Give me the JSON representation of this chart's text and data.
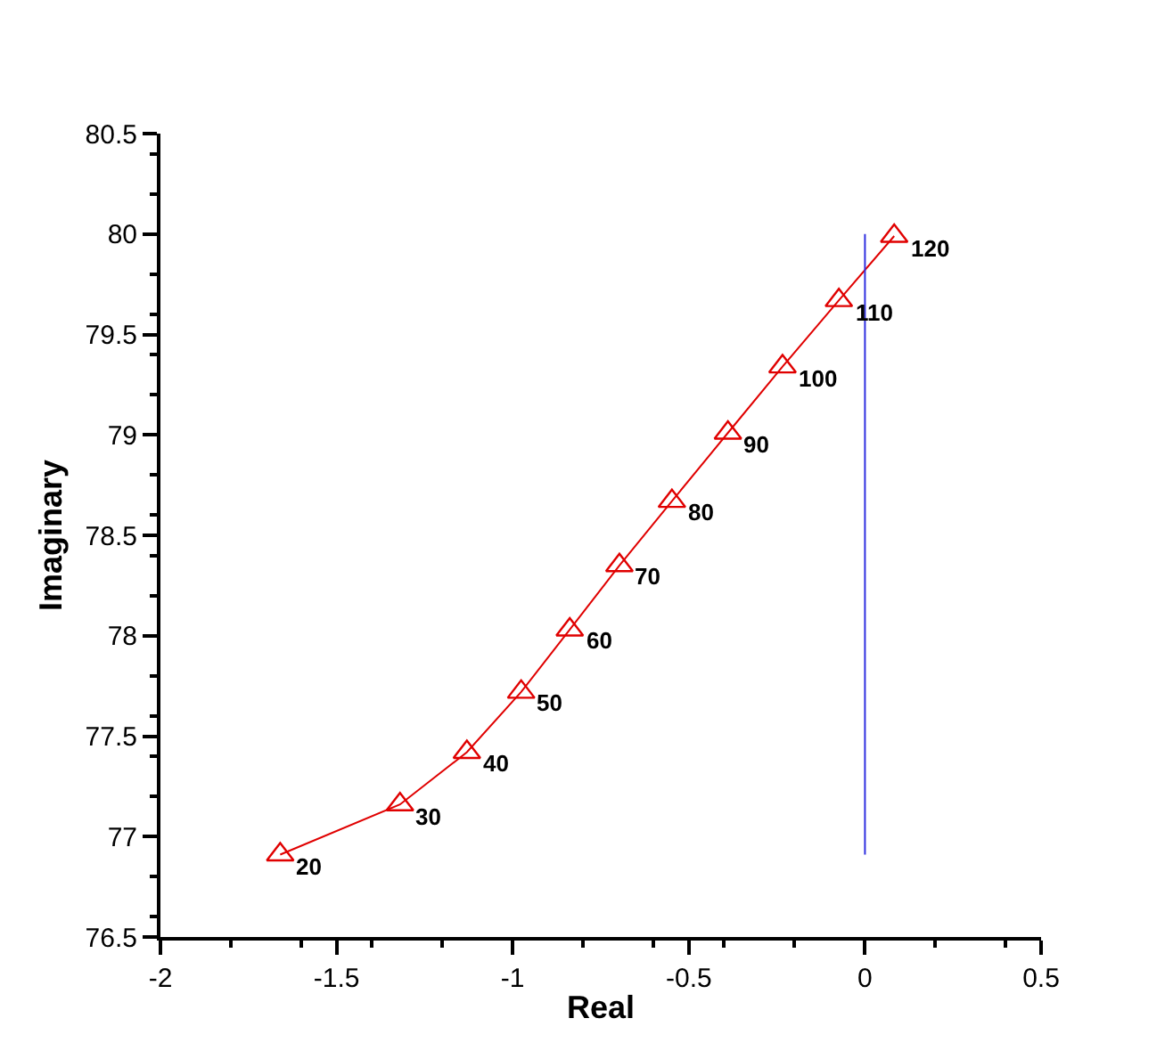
{
  "chart_data": {
    "type": "line",
    "xlabel": "Real",
    "ylabel": "Imaginary",
    "xlim": [
      -2,
      0.5
    ],
    "xticks": [
      -2,
      -1.5,
      -1,
      -0.5,
      0,
      0.5
    ],
    "ylim": [
      76.5,
      80.5
    ],
    "yticks": [
      76.5,
      77,
      77.5,
      78,
      78.5,
      79,
      79.5,
      80,
      80.5
    ],
    "series": [
      {
        "color": "#e00000",
        "marker": "triangle",
        "line_style": "solid",
        "x": [
          -1.66,
          -1.32,
          -1.13,
          -0.976,
          -0.838,
          -0.697,
          -0.548,
          -0.389,
          -0.234,
          -0.074,
          0.083
        ],
        "values": [
          76.91,
          77.16,
          77.42,
          77.72,
          78.03,
          78.35,
          78.67,
          79.01,
          79.34,
          79.67,
          79.99
        ]
      },
      {
        "color": "#3030e0",
        "marker": "none",
        "line_style": "solid",
        "x": [
          0,
          0
        ],
        "values": [
          76.91,
          80.0
        ]
      }
    ],
    "annotations": [
      {
        "text": "20",
        "x": -1.66,
        "y": 76.91
      },
      {
        "text": "30",
        "x": -1.32,
        "y": 77.16
      },
      {
        "text": "40",
        "x": -1.13,
        "y": 77.42
      },
      {
        "text": "50",
        "x": -0.976,
        "y": 77.72
      },
      {
        "text": "60",
        "x": -0.838,
        "y": 78.03
      },
      {
        "text": "70",
        "x": -0.697,
        "y": 78.35
      },
      {
        "text": "80",
        "x": -0.548,
        "y": 78.67
      },
      {
        "text": "90",
        "x": -0.389,
        "y": 79.01
      },
      {
        "text": "100",
        "x": -0.234,
        "y": 79.34
      },
      {
        "text": "110",
        "x": -0.074,
        "y": 79.67
      },
      {
        "text": "120",
        "x": 0.083,
        "y": 79.99
      }
    ]
  }
}
